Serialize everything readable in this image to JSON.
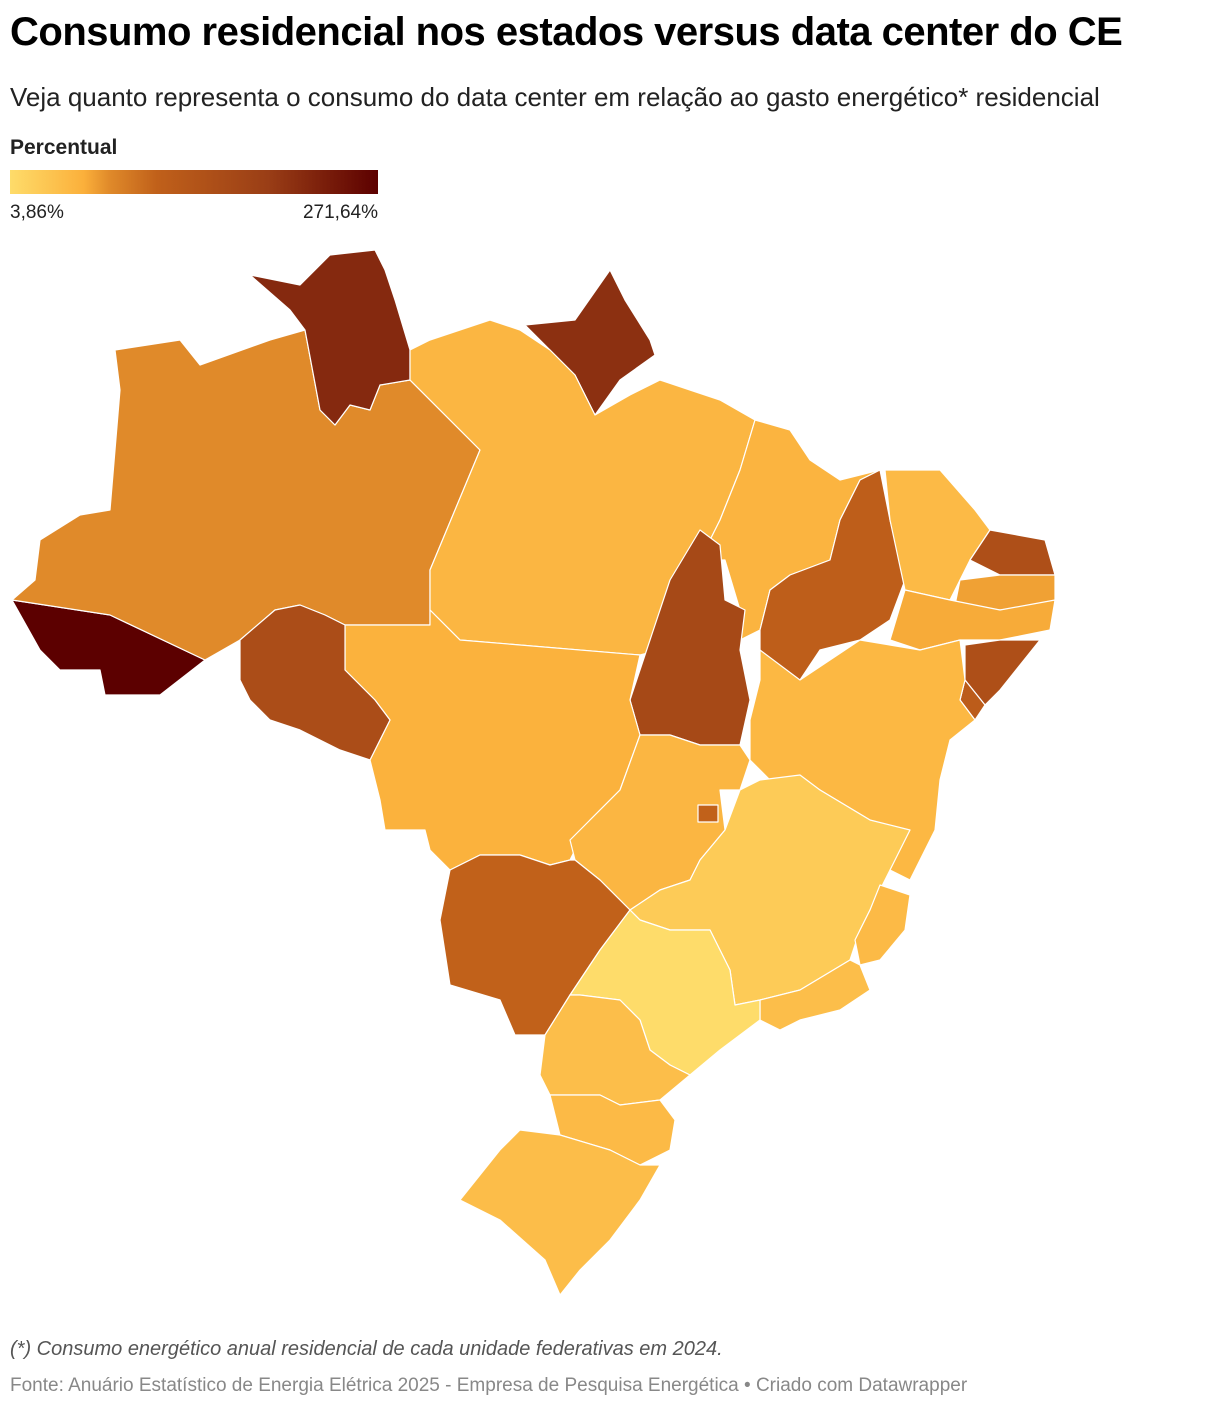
{
  "chart_data": {
    "type": "choropleth",
    "title": "Consumo residencial nos estados versus data center do CE",
    "subtitle": "Veja quanto representa o consumo do data center em relação ao gasto energético* residencial",
    "legend": {
      "title": "Percentual",
      "min": {
        "value": 3.86,
        "label": "3,86%"
      },
      "max": {
        "value": 271.64,
        "label": "271,64%"
      },
      "colors": [
        "#fedc6a",
        "#fbb03b",
        "#e08a2a",
        "#c0601a",
        "#9a3e16",
        "#5c0000"
      ],
      "color_positions": [
        0,
        0.2,
        0.27,
        0.4,
        0.7,
        1
      ]
    },
    "values": [
      271.64,
      76,
      218,
      210,
      50,
      52,
      116,
      45,
      150,
      65,
      60,
      150,
      120,
      48,
      165,
      55,
      155,
      50,
      110,
      110,
      25,
      45,
      40,
      3.86,
      40,
      45,
      42
    ],
    "note": "(*) Consumo energético anual residencial de cada unidade federativas em 2024.",
    "source": "Fonte: Anuário Estatístico de Energia Elétrica 2025 - Empresa de Pesquisa Energética • Criado com Datawrapper"
  }
}
